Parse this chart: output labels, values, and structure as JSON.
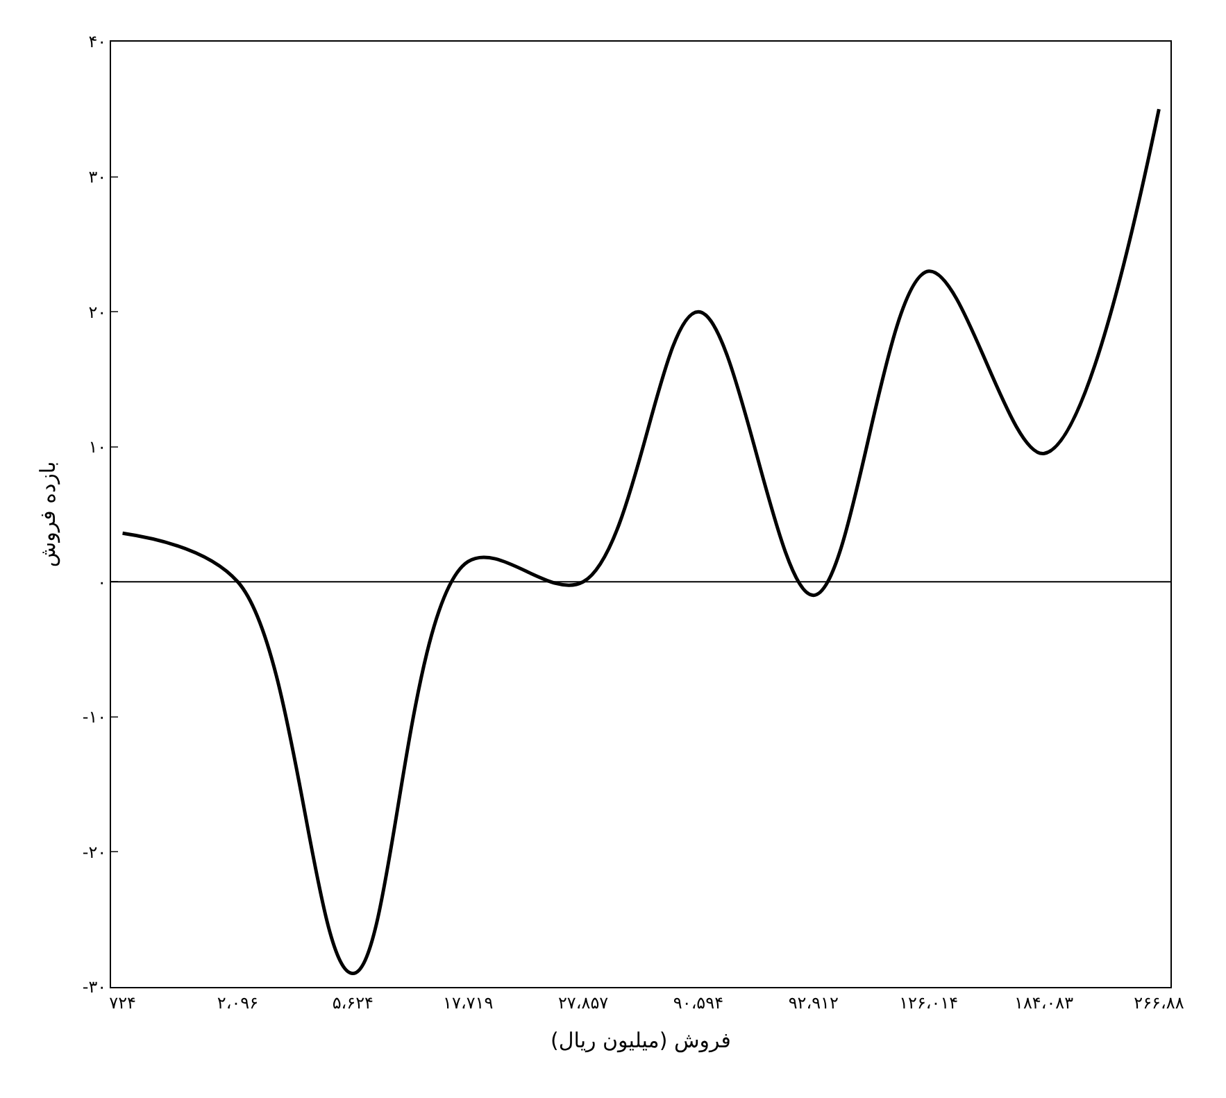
{
  "chart_data": {
    "type": "line",
    "xlabel": "فروش (میلیون ریال)",
    "ylabel": "بازده فروش",
    "categories": [
      "۷۲۴",
      "۲،۰۹۶",
      "۵،۶۲۴",
      "۱۷،۷۱۹",
      "۲۷،۸۵۷",
      "۹۰،۵۹۴",
      "۹۲،۹۱۲",
      "۱۲۶،۰۱۴",
      "۱۸۴،۰۸۳",
      "۲۶۶،۸۸"
    ],
    "series": [
      {
        "color": "#000000",
        "values": [
          3.6,
          0,
          -29,
          1.5,
          0,
          20,
          -1,
          23,
          9.5,
          35
        ]
      }
    ],
    "ylim": [
      -30,
      40
    ],
    "yticks": [
      {
        "value": -30,
        "label": "-۳۰"
      },
      {
        "value": -20,
        "label": "-۲۰"
      },
      {
        "value": -10,
        "label": "-۱۰"
      },
      {
        "value": 0,
        "label": "۰"
      },
      {
        "value": 10,
        "label": "۱۰"
      },
      {
        "value": 20,
        "label": "۲۰"
      },
      {
        "value": 30,
        "label": "۳۰"
      },
      {
        "value": 40,
        "label": "۴۰"
      }
    ],
    "ref_lines": [
      {
        "axis": "y",
        "value": 0,
        "color": "#000000"
      }
    ],
    "marker": "none",
    "line_style": "solid"
  }
}
